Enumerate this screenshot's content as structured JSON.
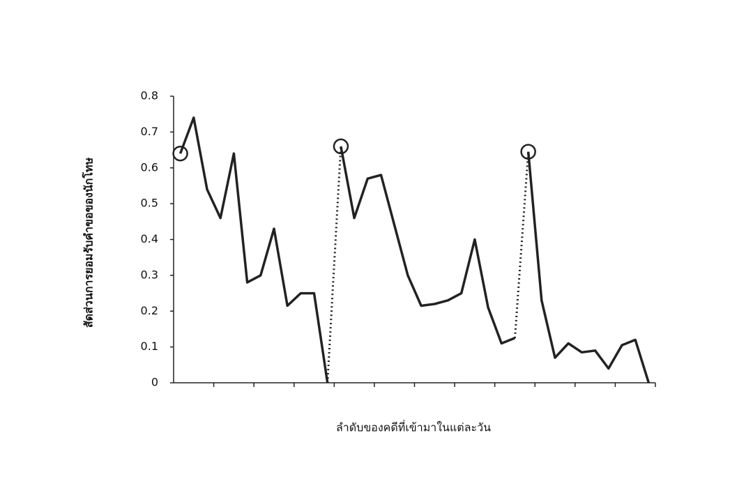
{
  "chart_data": {
    "type": "line",
    "x_label": "ลำดับของคดีที่เข้ามาในแต่ละวัน",
    "y_label": "สัดส่วนการยอมรับคำขอของนักโทษ",
    "categories": [
      null,
      null,
      null,
      null,
      null,
      null,
      null,
      null,
      null,
      null,
      null,
      null,
      null,
      null,
      null,
      null,
      null,
      null,
      null,
      null,
      null,
      null,
      null,
      null,
      null,
      null,
      null,
      null,
      null,
      null,
      null,
      null,
      null,
      null,
      null,
      null
    ],
    "ylim": [
      0,
      0.8
    ],
    "yticks": [
      0,
      0.1,
      0.2,
      0.3,
      0.4,
      0.5,
      0.6,
      0.7,
      0.8
    ],
    "xtick_every": 3,
    "series": [
      {
        "color": "#222222",
        "style": "solid",
        "marker_first": true,
        "values": [
          0.64,
          0.74,
          0.54,
          0.46,
          0.64,
          0.28,
          0.3,
          0.43,
          0.215,
          0.25,
          0.25,
          0,
          null,
          null,
          null,
          null,
          null,
          null,
          null,
          null,
          null,
          null,
          null,
          null,
          null,
          null,
          null,
          null,
          null,
          null,
          null,
          null,
          null,
          null,
          null,
          null
        ]
      },
      {
        "color": "#222222",
        "style": "solid",
        "marker_first": true,
        "values": [
          null,
          null,
          null,
          null,
          null,
          null,
          null,
          null,
          null,
          null,
          null,
          null,
          0.66,
          0.46,
          0.57,
          0.58,
          0.44,
          0.3,
          0.215,
          0.22,
          0.23,
          0.25,
          0.4,
          0.21,
          0.11,
          0.125,
          null,
          null,
          null,
          null,
          null,
          null,
          null,
          null,
          null,
          null
        ]
      },
      {
        "color": "#222222",
        "style": "solid",
        "marker_first": true,
        "values": [
          null,
          null,
          null,
          null,
          null,
          null,
          null,
          null,
          null,
          null,
          null,
          null,
          null,
          null,
          null,
          null,
          null,
          null,
          null,
          null,
          null,
          null,
          null,
          null,
          null,
          null,
          0.645,
          0.23,
          0.07,
          0.11,
          0.085,
          0.09,
          0.04,
          0.105,
          0.12,
          0
        ]
      },
      {
        "color": "#222222",
        "style": "dotted",
        "marker_first": false,
        "values": [
          null,
          null,
          null,
          null,
          null,
          null,
          null,
          null,
          null,
          null,
          null,
          0,
          0.66,
          null,
          null,
          null,
          null,
          null,
          null,
          null,
          null,
          null,
          null,
          null,
          null,
          0.125,
          0.645,
          null,
          null,
          null,
          null,
          null,
          null,
          null,
          null,
          null
        ]
      }
    ]
  }
}
